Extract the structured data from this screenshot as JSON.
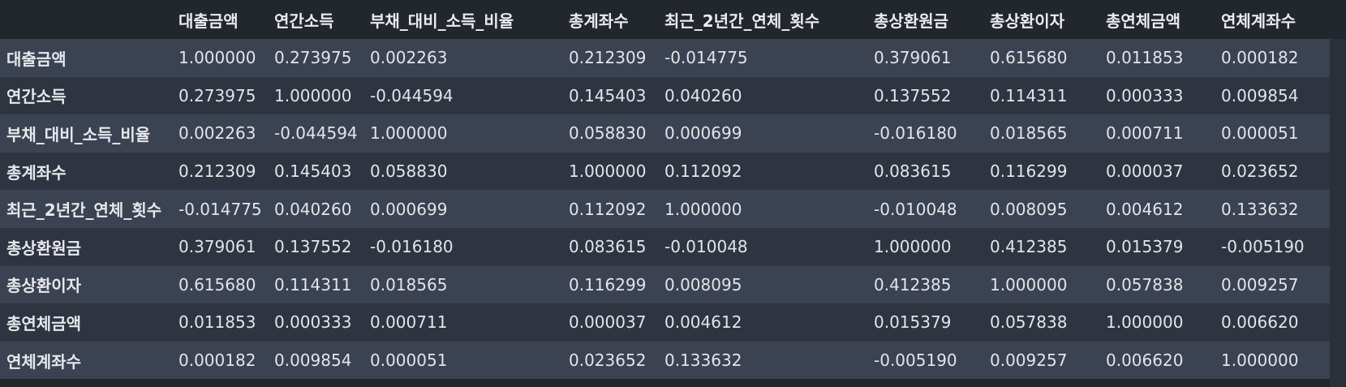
{
  "table": {
    "corner": "",
    "columns": [
      "대출금액",
      "연간소득",
      "부채_대비_소득_비율",
      "총계좌수",
      "최근_2년간_연체_횟수",
      "총상환원금",
      "총상환이자",
      "총연체금액",
      "연체계좌수"
    ],
    "rows": [
      {
        "label": "대출금액",
        "values": [
          "1.000000",
          "0.273975",
          "0.002263",
          "0.212309",
          "-0.014775",
          "0.379061",
          "0.615680",
          "0.011853",
          "0.000182"
        ]
      },
      {
        "label": "연간소득",
        "values": [
          "0.273975",
          "1.000000",
          "-0.044594",
          "0.145403",
          "0.040260",
          "0.137552",
          "0.114311",
          "0.000333",
          "0.009854"
        ]
      },
      {
        "label": "부채_대비_소득_비율",
        "values": [
          "0.002263",
          "-0.044594",
          "1.000000",
          "0.058830",
          "0.000699",
          "-0.016180",
          "0.018565",
          "0.000711",
          "0.000051"
        ]
      },
      {
        "label": "총계좌수",
        "values": [
          "0.212309",
          "0.145403",
          "0.058830",
          "1.000000",
          "0.112092",
          "0.083615",
          "0.116299",
          "0.000037",
          "0.023652"
        ]
      },
      {
        "label": "최근_2년간_연체_횟수",
        "values": [
          "-0.014775",
          "0.040260",
          "0.000699",
          "0.112092",
          "1.000000",
          "-0.010048",
          "0.008095",
          "0.004612",
          "0.133632"
        ]
      },
      {
        "label": "총상환원금",
        "values": [
          "0.379061",
          "0.137552",
          "-0.016180",
          "0.083615",
          "-0.010048",
          "1.000000",
          "0.412385",
          "0.015379",
          "-0.005190"
        ]
      },
      {
        "label": "총상환이자",
        "values": [
          "0.615680",
          "0.114311",
          "0.018565",
          "0.116299",
          "0.008095",
          "0.412385",
          "1.000000",
          "0.057838",
          "0.009257"
        ]
      },
      {
        "label": "총연체금액",
        "values": [
          "0.011853",
          "0.000333",
          "0.000711",
          "0.000037",
          "0.004612",
          "0.015379",
          "0.057838",
          "1.000000",
          "0.006620"
        ]
      },
      {
        "label": "연체계좌수",
        "values": [
          "0.000182",
          "0.009854",
          "0.000051",
          "0.023652",
          "0.133632",
          "-0.005190",
          "0.009257",
          "0.006620",
          "1.000000"
        ]
      }
    ]
  },
  "colors": {
    "background": "#22262d",
    "row_odd": "#3b4252",
    "row_even": "#2e3440",
    "text": "#e6e8ec"
  }
}
